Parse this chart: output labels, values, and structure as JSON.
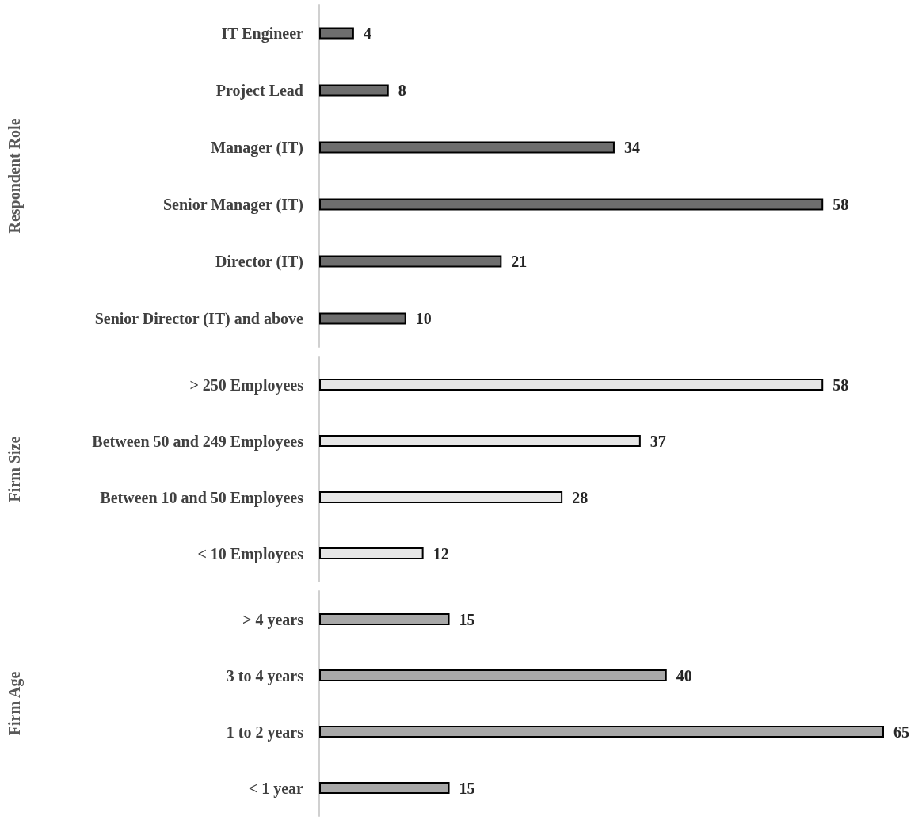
{
  "chart_data": [
    {
      "type": "bar",
      "orientation": "horizontal",
      "ylabel": "Respondent Role",
      "categories": [
        "IT Engineer",
        "Project Lead",
        "Manager (IT)",
        "Senior Manager (IT)",
        "Director (IT)",
        "Senior Director (IT) and above"
      ],
      "values": [
        4,
        8,
        34,
        58,
        21,
        10
      ],
      "color": "#6e6e6e",
      "tick_labels": "y",
      "data_labels": true
    },
    {
      "type": "bar",
      "orientation": "horizontal",
      "ylabel": "Firm Size",
      "categories": [
        "> 250 Employees",
        "Between 50 and 249 Employees",
        "Between 10 and 50 Employees",
        "< 10 Employees"
      ],
      "values": [
        58,
        37,
        28,
        12
      ],
      "color": "#e6e6e6",
      "tick_labels": "y",
      "data_labels": true
    },
    {
      "type": "bar",
      "orientation": "horizontal",
      "ylabel": "Firm Age",
      "categories": [
        "> 4 years",
        "3 to 4 years",
        "1 to 2 years",
        "< 1 year"
      ],
      "values": [
        15,
        40,
        65,
        15
      ],
      "color": "#a8a8a8",
      "tick_labels": "y",
      "data_labels": true
    }
  ]
}
